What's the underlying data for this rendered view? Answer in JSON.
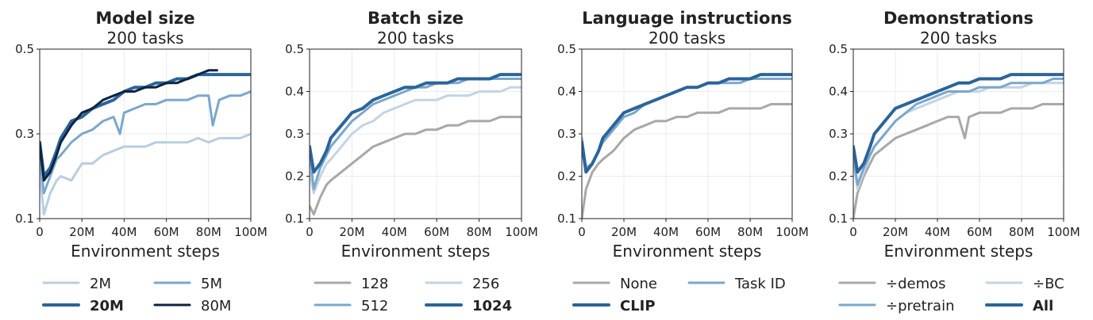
{
  "chart_data": [
    {
      "type": "line",
      "title": "Model size",
      "subtitle": "200 tasks",
      "xlabel": "Environment steps",
      "ylabel": "",
      "xlim": [
        0,
        100
      ],
      "ylim": [
        0.1,
        0.5
      ],
      "x_ticks": [
        "0",
        "20M",
        "40M",
        "60M",
        "80M",
        "100M"
      ],
      "y_ticks": [
        "0.1",
        "0.3",
        "0.5"
      ],
      "grid": true,
      "legend_position": "bottom",
      "series": [
        {
          "name": "2M",
          "color": "#b8cde0",
          "bold": false,
          "width": 3,
          "x": [
            0,
            2,
            5,
            8,
            10,
            15,
            20,
            25,
            30,
            35,
            40,
            45,
            50,
            55,
            60,
            65,
            70,
            75,
            80,
            85,
            90,
            95,
            100
          ],
          "y": [
            0.21,
            0.11,
            0.16,
            0.19,
            0.2,
            0.19,
            0.23,
            0.23,
            0.25,
            0.26,
            0.27,
            0.27,
            0.27,
            0.28,
            0.28,
            0.28,
            0.28,
            0.29,
            0.28,
            0.29,
            0.29,
            0.29,
            0.3
          ]
        },
        {
          "name": "5M",
          "color": "#7ba7cc",
          "bold": false,
          "width": 3,
          "x": [
            0,
            2,
            5,
            8,
            10,
            15,
            20,
            25,
            30,
            35,
            38,
            40,
            45,
            50,
            55,
            60,
            65,
            70,
            75,
            80,
            82,
            85,
            90,
            95,
            100
          ],
          "y": [
            0.25,
            0.16,
            0.2,
            0.24,
            0.25,
            0.28,
            0.3,
            0.31,
            0.33,
            0.34,
            0.3,
            0.35,
            0.36,
            0.37,
            0.37,
            0.38,
            0.38,
            0.38,
            0.39,
            0.39,
            0.32,
            0.38,
            0.39,
            0.39,
            0.4
          ]
        },
        {
          "name": "20M",
          "color": "#2b649a",
          "bold": true,
          "width": 4,
          "x": [
            0,
            2,
            5,
            8,
            10,
            15,
            20,
            25,
            30,
            35,
            40,
            45,
            50,
            55,
            60,
            65,
            70,
            75,
            80,
            85,
            90,
            95,
            100
          ],
          "y": [
            0.28,
            0.2,
            0.22,
            0.26,
            0.29,
            0.33,
            0.34,
            0.36,
            0.37,
            0.38,
            0.4,
            0.41,
            0.41,
            0.42,
            0.42,
            0.43,
            0.43,
            0.44,
            0.44,
            0.44,
            0.44,
            0.44,
            0.44
          ]
        },
        {
          "name": "80M",
          "color": "#0d2440",
          "bold": false,
          "width": 3,
          "x": [
            0,
            2,
            5,
            8,
            10,
            15,
            20,
            25,
            30,
            35,
            40,
            45,
            50,
            55,
            60,
            65,
            70,
            75,
            80,
            84
          ],
          "y": [
            0.28,
            0.19,
            0.21,
            0.25,
            0.28,
            0.32,
            0.35,
            0.36,
            0.38,
            0.39,
            0.4,
            0.4,
            0.41,
            0.41,
            0.42,
            0.42,
            0.43,
            0.44,
            0.45,
            0.45
          ]
        }
      ]
    },
    {
      "type": "line",
      "title": "Batch size",
      "subtitle": "200 tasks",
      "xlabel": "Environment steps",
      "ylabel": "",
      "xlim": [
        0,
        100
      ],
      "ylim": [
        0.1,
        0.5
      ],
      "x_ticks": [
        "0",
        "20M",
        "40M",
        "60M",
        "80M",
        "100M"
      ],
      "y_ticks": [
        "0.1",
        "0.2",
        "0.3",
        "0.4",
        "0.5"
      ],
      "grid": true,
      "legend_position": "bottom",
      "series": [
        {
          "name": "128",
          "color": "#a8a8a8",
          "bold": false,
          "width": 3,
          "x": [
            0,
            2,
            5,
            8,
            10,
            15,
            20,
            25,
            30,
            35,
            40,
            45,
            50,
            55,
            60,
            65,
            70,
            75,
            80,
            85,
            90,
            95,
            100
          ],
          "y": [
            0.13,
            0.11,
            0.15,
            0.18,
            0.19,
            0.21,
            0.23,
            0.25,
            0.27,
            0.28,
            0.29,
            0.3,
            0.3,
            0.31,
            0.31,
            0.32,
            0.32,
            0.33,
            0.33,
            0.33,
            0.34,
            0.34,
            0.34
          ]
        },
        {
          "name": "256",
          "color": "#c2d4e6",
          "bold": false,
          "width": 3,
          "x": [
            0,
            2,
            5,
            8,
            10,
            15,
            20,
            25,
            30,
            35,
            40,
            45,
            50,
            55,
            60,
            65,
            70,
            75,
            80,
            85,
            90,
            95,
            100
          ],
          "y": [
            0.21,
            0.16,
            0.2,
            0.23,
            0.24,
            0.27,
            0.3,
            0.32,
            0.33,
            0.35,
            0.36,
            0.37,
            0.38,
            0.38,
            0.38,
            0.39,
            0.39,
            0.39,
            0.4,
            0.4,
            0.4,
            0.41,
            0.41
          ]
        },
        {
          "name": "512",
          "color": "#7ba7cc",
          "bold": false,
          "width": 3,
          "x": [
            0,
            2,
            5,
            8,
            10,
            15,
            20,
            25,
            30,
            35,
            40,
            45,
            50,
            55,
            60,
            65,
            70,
            75,
            80,
            85,
            90,
            95,
            100
          ],
          "y": [
            0.26,
            0.17,
            0.22,
            0.25,
            0.27,
            0.3,
            0.33,
            0.35,
            0.37,
            0.38,
            0.39,
            0.4,
            0.41,
            0.41,
            0.42,
            0.42,
            0.42,
            0.43,
            0.43,
            0.43,
            0.43,
            0.43,
            0.43
          ]
        },
        {
          "name": "1024",
          "color": "#2b649a",
          "bold": true,
          "width": 4,
          "x": [
            0,
            2,
            5,
            8,
            10,
            15,
            20,
            25,
            30,
            35,
            40,
            45,
            50,
            55,
            60,
            65,
            70,
            75,
            80,
            85,
            90,
            95,
            100
          ],
          "y": [
            0.27,
            0.21,
            0.23,
            0.26,
            0.29,
            0.32,
            0.35,
            0.36,
            0.38,
            0.39,
            0.4,
            0.41,
            0.41,
            0.42,
            0.42,
            0.42,
            0.43,
            0.43,
            0.43,
            0.43,
            0.44,
            0.44,
            0.44
          ]
        }
      ]
    },
    {
      "type": "line",
      "title": "Language instructions",
      "subtitle": "200 tasks",
      "xlabel": "Environment steps",
      "ylabel": "",
      "xlim": [
        0,
        100
      ],
      "ylim": [
        0.1,
        0.5
      ],
      "x_ticks": [
        "0",
        "20M",
        "40M",
        "60M",
        "80M",
        "100M"
      ],
      "y_ticks": [
        "0.1",
        "0.2",
        "0.3",
        "0.4",
        "0.5"
      ],
      "grid": true,
      "legend_position": "bottom",
      "series": [
        {
          "name": "None",
          "color": "#a8a8a8",
          "bold": false,
          "width": 3,
          "x": [
            0,
            2,
            5,
            8,
            10,
            15,
            20,
            25,
            30,
            35,
            40,
            45,
            50,
            55,
            60,
            65,
            70,
            75,
            80,
            85,
            90,
            95,
            100
          ],
          "y": [
            0.1,
            0.17,
            0.21,
            0.23,
            0.24,
            0.26,
            0.29,
            0.31,
            0.32,
            0.33,
            0.33,
            0.34,
            0.34,
            0.35,
            0.35,
            0.35,
            0.36,
            0.36,
            0.36,
            0.36,
            0.37,
            0.37,
            0.37
          ]
        },
        {
          "name": "Task ID",
          "color": "#7ba7cc",
          "bold": false,
          "width": 3,
          "x": [
            0,
            2,
            5,
            8,
            10,
            15,
            20,
            25,
            30,
            35,
            40,
            45,
            50,
            55,
            60,
            65,
            70,
            75,
            80,
            85,
            90,
            95,
            100
          ],
          "y": [
            0.29,
            0.22,
            0.23,
            0.26,
            0.28,
            0.31,
            0.34,
            0.35,
            0.37,
            0.38,
            0.39,
            0.4,
            0.41,
            0.41,
            0.42,
            0.42,
            0.42,
            0.42,
            0.43,
            0.43,
            0.43,
            0.43,
            0.43
          ]
        },
        {
          "name": "CLIP",
          "color": "#2b649a",
          "bold": true,
          "width": 4,
          "x": [
            0,
            2,
            5,
            8,
            10,
            15,
            20,
            25,
            30,
            35,
            40,
            45,
            50,
            55,
            60,
            65,
            70,
            75,
            80,
            85,
            90,
            95,
            100
          ],
          "y": [
            0.28,
            0.21,
            0.23,
            0.26,
            0.29,
            0.32,
            0.35,
            0.36,
            0.37,
            0.38,
            0.39,
            0.4,
            0.41,
            0.41,
            0.42,
            0.42,
            0.43,
            0.43,
            0.43,
            0.44,
            0.44,
            0.44,
            0.44
          ]
        }
      ]
    },
    {
      "type": "line",
      "title": "Demonstrations",
      "subtitle": "200 tasks",
      "xlabel": "Environment steps",
      "ylabel": "",
      "xlim": [
        0,
        100
      ],
      "ylim": [
        0.1,
        0.5
      ],
      "x_ticks": [
        "0",
        "20M",
        "40M",
        "60M",
        "80M",
        "100M"
      ],
      "y_ticks": [
        "0.1",
        "0.2",
        "0.3",
        "0.4",
        "0.5"
      ],
      "grid": true,
      "legend_position": "bottom",
      "series": [
        {
          "name": "÷demos",
          "color": "#a8a8a8",
          "bold": false,
          "width": 3,
          "x": [
            0,
            2,
            5,
            8,
            10,
            15,
            20,
            25,
            30,
            35,
            40,
            45,
            50,
            53,
            55,
            60,
            65,
            70,
            75,
            80,
            85,
            90,
            95,
            100
          ],
          "y": [
            0.1,
            0.16,
            0.2,
            0.23,
            0.25,
            0.27,
            0.29,
            0.3,
            0.31,
            0.32,
            0.33,
            0.34,
            0.34,
            0.29,
            0.34,
            0.35,
            0.35,
            0.35,
            0.36,
            0.36,
            0.36,
            0.37,
            0.37,
            0.37
          ]
        },
        {
          "name": "÷BC",
          "color": "#c2d4e6",
          "bold": false,
          "width": 3,
          "x": [
            0,
            2,
            5,
            8,
            10,
            15,
            20,
            25,
            30,
            35,
            40,
            45,
            50,
            55,
            60,
            65,
            70,
            75,
            80,
            85,
            90,
            95,
            100
          ],
          "y": [
            0.24,
            0.17,
            0.21,
            0.25,
            0.27,
            0.3,
            0.33,
            0.35,
            0.36,
            0.37,
            0.38,
            0.39,
            0.4,
            0.4,
            0.4,
            0.41,
            0.41,
            0.41,
            0.41,
            0.42,
            0.42,
            0.42,
            0.42
          ]
        },
        {
          "name": "÷pretrain",
          "color": "#7ba7cc",
          "bold": false,
          "width": 3,
          "x": [
            0,
            2,
            5,
            8,
            10,
            15,
            20,
            25,
            30,
            35,
            40,
            45,
            50,
            55,
            60,
            65,
            70,
            75,
            80,
            85,
            90,
            95,
            100
          ],
          "y": [
            0.25,
            0.18,
            0.22,
            0.25,
            0.27,
            0.3,
            0.33,
            0.35,
            0.37,
            0.38,
            0.39,
            0.4,
            0.4,
            0.4,
            0.41,
            0.41,
            0.41,
            0.42,
            0.42,
            0.42,
            0.42,
            0.43,
            0.43
          ]
        },
        {
          "name": "All",
          "color": "#2b649a",
          "bold": true,
          "width": 4,
          "x": [
            0,
            2,
            5,
            8,
            10,
            15,
            20,
            25,
            30,
            35,
            40,
            45,
            50,
            55,
            60,
            65,
            70,
            75,
            80,
            85,
            90,
            95,
            100
          ],
          "y": [
            0.27,
            0.21,
            0.23,
            0.27,
            0.3,
            0.33,
            0.36,
            0.37,
            0.38,
            0.39,
            0.4,
            0.41,
            0.42,
            0.42,
            0.43,
            0.43,
            0.43,
            0.44,
            0.44,
            0.44,
            0.44,
            0.44,
            0.44
          ]
        }
      ]
    }
  ]
}
